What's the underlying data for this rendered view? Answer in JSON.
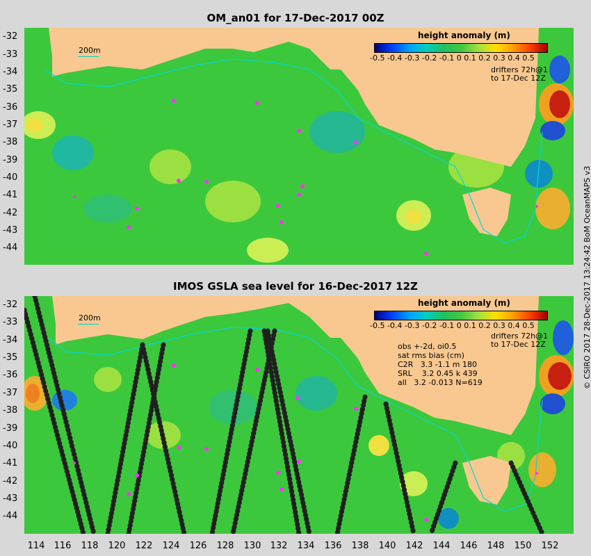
{
  "top_panel": {
    "title": "OM_an01 for 17-Dec-2017 00Z",
    "colorbar_title": "height anomaly (m)",
    "colorbar_ticks": "-0.5 -0.4 -0.3 -0.2 -0.1   0   0.1  0.2  0.3  0.4  0.5",
    "scale_label": "200m",
    "drifters_line1": "drifters 72h@1",
    "drifters_line2": "to 17-Dec 12Z",
    "y_ticks": [
      "-32",
      "-33",
      "-34",
      "-35",
      "-36",
      "-37",
      "-38",
      "-39",
      "-40",
      "-41",
      "-42",
      "-43",
      "-44"
    ]
  },
  "bottom_panel": {
    "title": "IMOS GSLA sea level  for 16-Dec-2017 12Z",
    "colorbar_title": "height anomaly (m)",
    "colorbar_ticks": "-0.5 -0.4 -0.3 -0.2 -0.1   0   0.1  0.2  0.3  0.4  0.5",
    "scale_label": "200m",
    "drifters_line1": "drifters 72h@1",
    "drifters_line2": "to 17-Dec 12Z",
    "stats": "obs +-2d, oi0.5\nsat rms bias (cm)\nC2R   3.3 -1.1 m 180\nSRL    3.2 0.45 k 439\nall   3.2 -0.013 N=619",
    "y_ticks": [
      "-32",
      "-33",
      "-34",
      "-35",
      "-36",
      "-37",
      "-38",
      "-39",
      "-40",
      "-41",
      "-42",
      "-43",
      "-44"
    ],
    "x_ticks": [
      "114",
      "116",
      "118",
      "120",
      "122",
      "124",
      "126",
      "128",
      "130",
      "132",
      "134",
      "136",
      "138",
      "140",
      "142",
      "144",
      "146",
      "148",
      "150",
      "152"
    ]
  },
  "credit": "© CSIRO 2017  28-Dec-2017 13:24:42 BoM OceanMAPS v3",
  "colors": {
    "land": "#f8c890",
    "ocean_base": "#3cc83c",
    "shelf_contour": "#00d8d8",
    "drifter": "#ff30ff"
  }
}
